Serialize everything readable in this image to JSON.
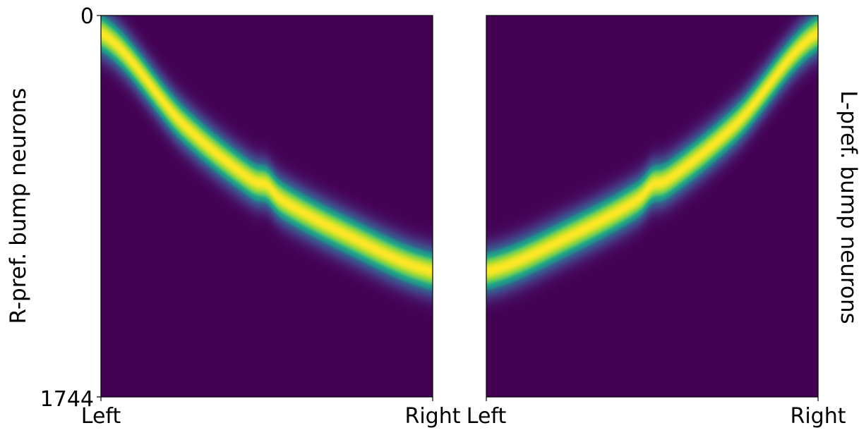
{
  "chart_data": [
    {
      "type": "heatmap",
      "title": "",
      "xlabel": "",
      "ylabel": "R-pref. bump neurons",
      "ylabel_side": "left",
      "x_ticks": [
        "Left",
        "Right"
      ],
      "y_ticks": [
        "0",
        "1744"
      ],
      "ylim": [
        1744,
        0
      ],
      "colormap": "viridis",
      "value_range": [
        0,
        1
      ],
      "ridge": {
        "x": [
          0.0,
          0.25,
          0.5,
          0.75,
          1.0
        ],
        "neuron": [
          80,
          500,
          800,
          1010,
          1170
        ]
      },
      "ridge_width_neurons": 95,
      "ridge_notch": {
        "x": 0.5,
        "shift_neurons": -25
      }
    },
    {
      "type": "heatmap",
      "title": "",
      "xlabel": "",
      "ylabel": "L-pref. bump neurons",
      "ylabel_side": "right",
      "x_ticks": [
        "Left",
        "Right"
      ],
      "y_ticks": [],
      "ylim": [
        1744,
        0
      ],
      "colormap": "viridis",
      "value_range": [
        0,
        1
      ],
      "ridge": {
        "x": [
          0.0,
          0.25,
          0.5,
          0.75,
          1.0
        ],
        "neuron": [
          1170,
          1010,
          800,
          500,
          80
        ]
      },
      "ridge_width_neurons": 95,
      "ridge_notch": {
        "x": 0.5,
        "shift_neurons": -25
      }
    }
  ],
  "colors": {
    "viridis_low": "#440154",
    "viridis_mid_low": "#3b528b",
    "viridis_mid": "#21918c",
    "viridis_mid_high": "#5ec962",
    "viridis_high": "#fde725",
    "frame": "#000000"
  }
}
